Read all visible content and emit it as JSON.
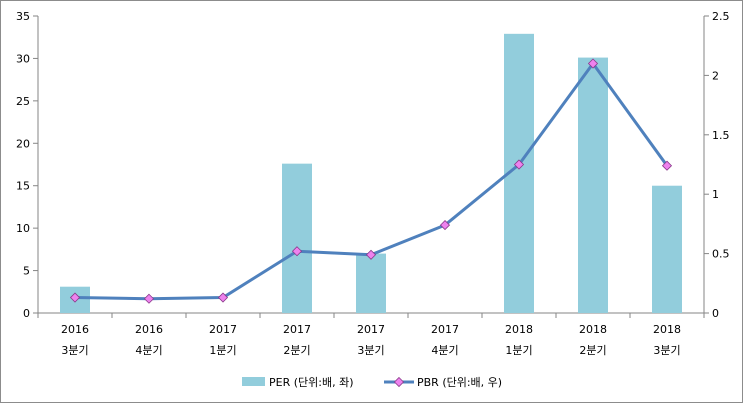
{
  "chart_data": {
    "type": "bar",
    "categories": [
      [
        "2016",
        "3분기"
      ],
      [
        "2016",
        "4분기"
      ],
      [
        "2017",
        "1분기"
      ],
      [
        "2017",
        "2분기"
      ],
      [
        "2017",
        "3분기"
      ],
      [
        "2017",
        "4분기"
      ],
      [
        "2018",
        "1분기"
      ],
      [
        "2018",
        "2분기"
      ],
      [
        "2018",
        "3분기"
      ]
    ],
    "series": [
      {
        "name": "PER (단위:배, 좌)",
        "type": "bar",
        "axis": "left",
        "color": "#92cddc",
        "values": [
          3.1,
          null,
          null,
          17.6,
          7.0,
          null,
          32.9,
          30.1,
          15.0
        ]
      },
      {
        "name": "PBR (단위:배, 우)",
        "type": "line",
        "axis": "right",
        "color": "#4f81bd",
        "marker_color": "#ee82ee",
        "values": [
          0.13,
          0.12,
          0.13,
          0.52,
          0.49,
          0.74,
          1.25,
          2.1,
          1.24
        ]
      }
    ],
    "y_left": {
      "ylim": [
        0,
        35
      ],
      "ticks": [
        0,
        5,
        10,
        15,
        20,
        25,
        30,
        35
      ]
    },
    "y_right": {
      "ylim": [
        0,
        2.5
      ],
      "ticks": [
        "0",
        "0.5",
        "1",
        "1.5",
        "2",
        "2.5"
      ]
    },
    "grid": false,
    "legend_position": "bottom"
  }
}
